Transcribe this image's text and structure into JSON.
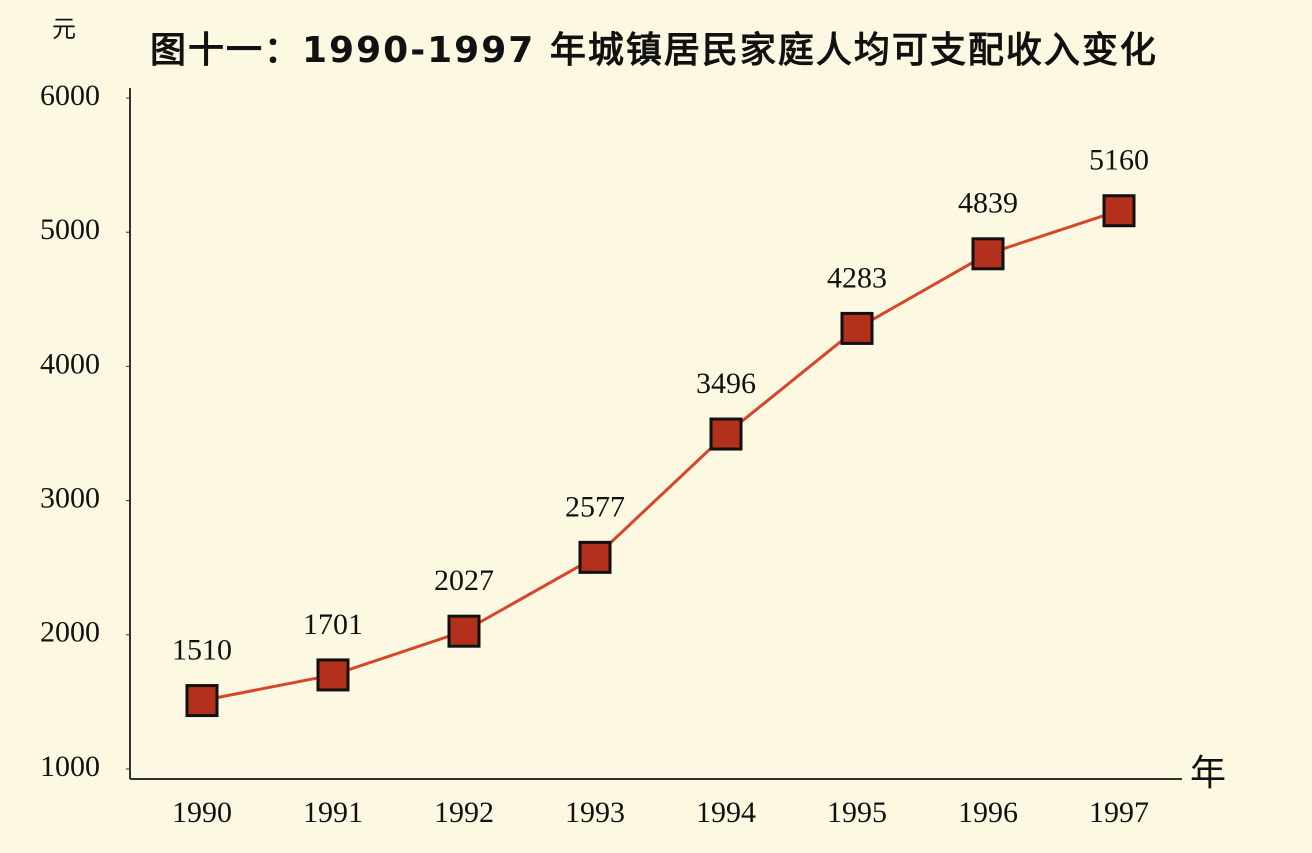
{
  "chart_data": {
    "type": "line",
    "title": "图十一：1990-1997 年城镇居民家庭人均可支配收入变化",
    "y_unit": "元",
    "x_unit": "年",
    "categories": [
      "1990",
      "1991",
      "1992",
      "1993",
      "1994",
      "1995",
      "1996",
      "1997"
    ],
    "values": [
      1510,
      1701,
      2027,
      2577,
      3496,
      4283,
      4839,
      5160
    ],
    "color": "#d8452b",
    "marker_color": "#b3301c",
    "ylim": [
      1000,
      6000
    ],
    "yticks": [
      1000,
      2000,
      3000,
      4000,
      5000,
      6000
    ],
    "grid": false
  }
}
